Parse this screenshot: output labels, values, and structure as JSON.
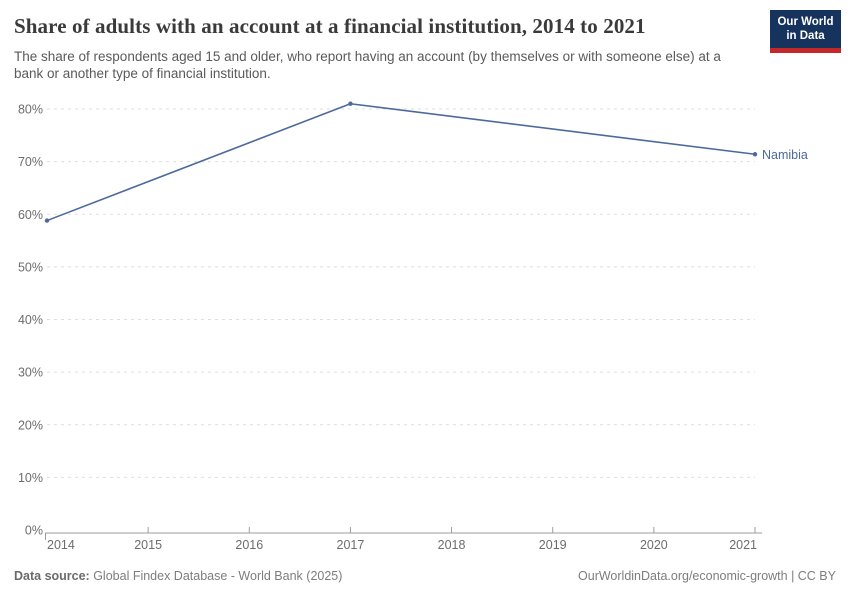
{
  "header": {
    "title": "Share of adults with an account at a financial institution, 2014 to 2021",
    "subtitle": "The share of respondents aged 15 and older, who report having an account (by themselves or with someone else) at a bank or another type of financial institution.",
    "logo": {
      "line1": "Our World",
      "line2": "in Data",
      "bg_color": "#16335d",
      "accent_color": "#c52828"
    }
  },
  "chart_data": {
    "type": "line",
    "title": "Share of adults with an account at a financial institution, 2014 to 2021",
    "series": [
      {
        "name": "Namibia",
        "color": "#4c6a9c",
        "points": [
          {
            "x": 2014,
            "y": 58.8
          },
          {
            "x": 2017,
            "y": 81
          },
          {
            "x": 2021,
            "y": 71.4
          }
        ]
      }
    ],
    "x_ticks": [
      2014,
      2015,
      2016,
      2017,
      2018,
      2019,
      2020,
      2021
    ],
    "y_ticks": [
      0,
      10,
      20,
      30,
      40,
      50,
      60,
      70,
      80
    ],
    "y_tick_suffix": "%",
    "xlim": [
      2014,
      2021
    ],
    "ylim": [
      0,
      80
    ],
    "grid": "horizontal-dashed",
    "legend_position": "end-of-line-label",
    "xlabel": "",
    "ylabel": ""
  },
  "footer": {
    "source_label": "Data source:",
    "source_text": " Global Findex Database - World Bank (2025)",
    "credit": "OurWorldinData.org/economic-growth | CC BY"
  }
}
